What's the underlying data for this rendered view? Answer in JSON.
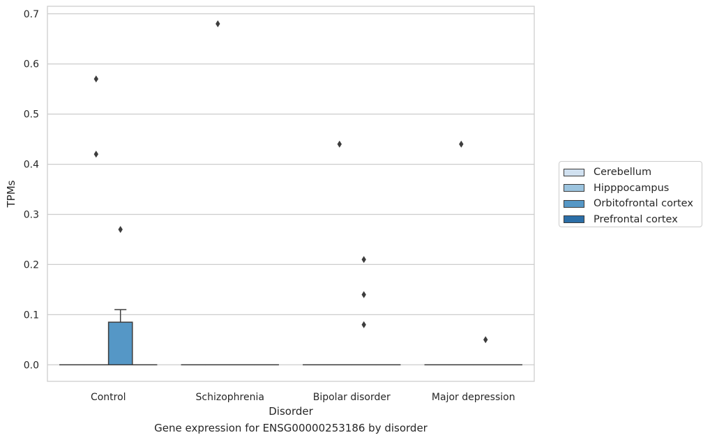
{
  "chart_data": {
    "type": "box",
    "xlabel": "Disorder",
    "ylabel": "TPMs",
    "caption": "Gene expression for ENSG00000253186 by disorder",
    "ylim": [
      -0.033,
      0.715
    ],
    "yticks": [
      0.0,
      0.1,
      0.2,
      0.3,
      0.4,
      0.5,
      0.6,
      0.7
    ],
    "ytick_labels": [
      "0.0",
      "0.1",
      "0.2",
      "0.3",
      "0.4",
      "0.5",
      "0.6",
      "0.7"
    ],
    "grid": true,
    "legend_position": "right",
    "categories": [
      "Control",
      "Schizophrenia",
      "Bipolar disorder",
      "Major depression"
    ],
    "series": [
      {
        "name": "Cerebellum",
        "color": "#d1e1f0",
        "boxes": [
          {
            "q1": 0,
            "median": 0,
            "q3": 0,
            "whisker_low": 0,
            "whisker_high": 0,
            "outliers": []
          },
          {
            "q1": 0,
            "median": 0,
            "q3": 0,
            "whisker_low": 0,
            "whisker_high": 0,
            "outliers": []
          },
          {
            "q1": 0,
            "median": 0,
            "q3": 0,
            "whisker_low": 0,
            "whisker_high": 0,
            "outliers": []
          },
          {
            "q1": 0,
            "median": 0,
            "q3": 0,
            "whisker_low": 0,
            "whisker_high": 0,
            "outliers": []
          }
        ]
      },
      {
        "name": "Hipppocampus",
        "color": "#9cc4df",
        "boxes": [
          {
            "q1": 0,
            "median": 0,
            "q3": 0,
            "whisker_low": 0,
            "whisker_high": 0,
            "outliers": [
              0.57,
              0.42
            ]
          },
          {
            "q1": 0,
            "median": 0,
            "q3": 0,
            "whisker_low": 0,
            "whisker_high": 0,
            "outliers": [
              0.68
            ]
          },
          {
            "q1": 0,
            "median": 0,
            "q3": 0,
            "whisker_low": 0,
            "whisker_high": 0,
            "outliers": [
              0.44
            ]
          },
          {
            "q1": 0,
            "median": 0,
            "q3": 0,
            "whisker_low": 0,
            "whisker_high": 0,
            "outliers": [
              0.44
            ]
          }
        ]
      },
      {
        "name": "Orbitofrontal cortex",
        "color": "#5597c6",
        "boxes": [
          {
            "q1": 0,
            "median": 0,
            "q3": 0.085,
            "whisker_low": 0,
            "whisker_high": 0.11,
            "outliers": [
              0.27
            ]
          },
          {
            "q1": 0,
            "median": 0,
            "q3": 0,
            "whisker_low": 0,
            "whisker_high": 0,
            "outliers": []
          },
          {
            "q1": 0,
            "median": 0,
            "q3": 0,
            "whisker_low": 0,
            "whisker_high": 0,
            "outliers": [
              0.21,
              0.14,
              0.08
            ]
          },
          {
            "q1": 0,
            "median": 0,
            "q3": 0,
            "whisker_low": 0,
            "whisker_high": 0,
            "outliers": [
              0.05
            ]
          }
        ]
      },
      {
        "name": "Prefrontal cortex",
        "color": "#2b6ea7",
        "boxes": [
          {
            "q1": 0,
            "median": 0,
            "q3": 0,
            "whisker_low": 0,
            "whisker_high": 0,
            "outliers": []
          },
          {
            "q1": 0,
            "median": 0,
            "q3": 0,
            "whisker_low": 0,
            "whisker_high": 0,
            "outliers": []
          },
          {
            "q1": 0,
            "median": 0,
            "q3": 0,
            "whisker_low": 0,
            "whisker_high": 0,
            "outliers": []
          },
          {
            "q1": 0,
            "median": 0,
            "q3": 0,
            "whisker_low": 0,
            "whisker_high": 0,
            "outliers": []
          }
        ]
      }
    ]
  }
}
